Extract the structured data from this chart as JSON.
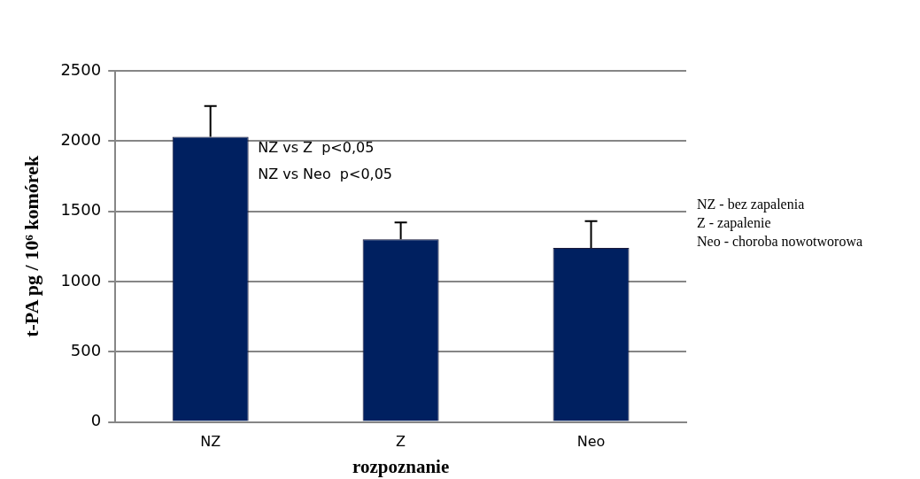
{
  "chart_data": {
    "type": "bar",
    "xlabel": "rozpoznanie",
    "ylabel": "t-PA pg / 10⁶ komórek",
    "categories": [
      "NZ",
      "Z",
      "Neo"
    ],
    "values": [
      2030,
      1300,
      1240
    ],
    "errors": [
      [
        2030,
        2250
      ],
      [
        1300,
        1420
      ],
      [
        1240,
        1430
      ]
    ],
    "color": "#002060",
    "ylim": [
      0,
      2500
    ],
    "yticks": [
      0,
      500,
      1000,
      1500,
      2000,
      2500
    ],
    "grid": "y",
    "annotations": [
      "NZ vs Z  p<0,05",
      "NZ vs Neo  p<0,05",
      "NZ - bez zapalenia",
      "Z - zapalenie",
      "Neo - choroba nowotworowa"
    ]
  }
}
